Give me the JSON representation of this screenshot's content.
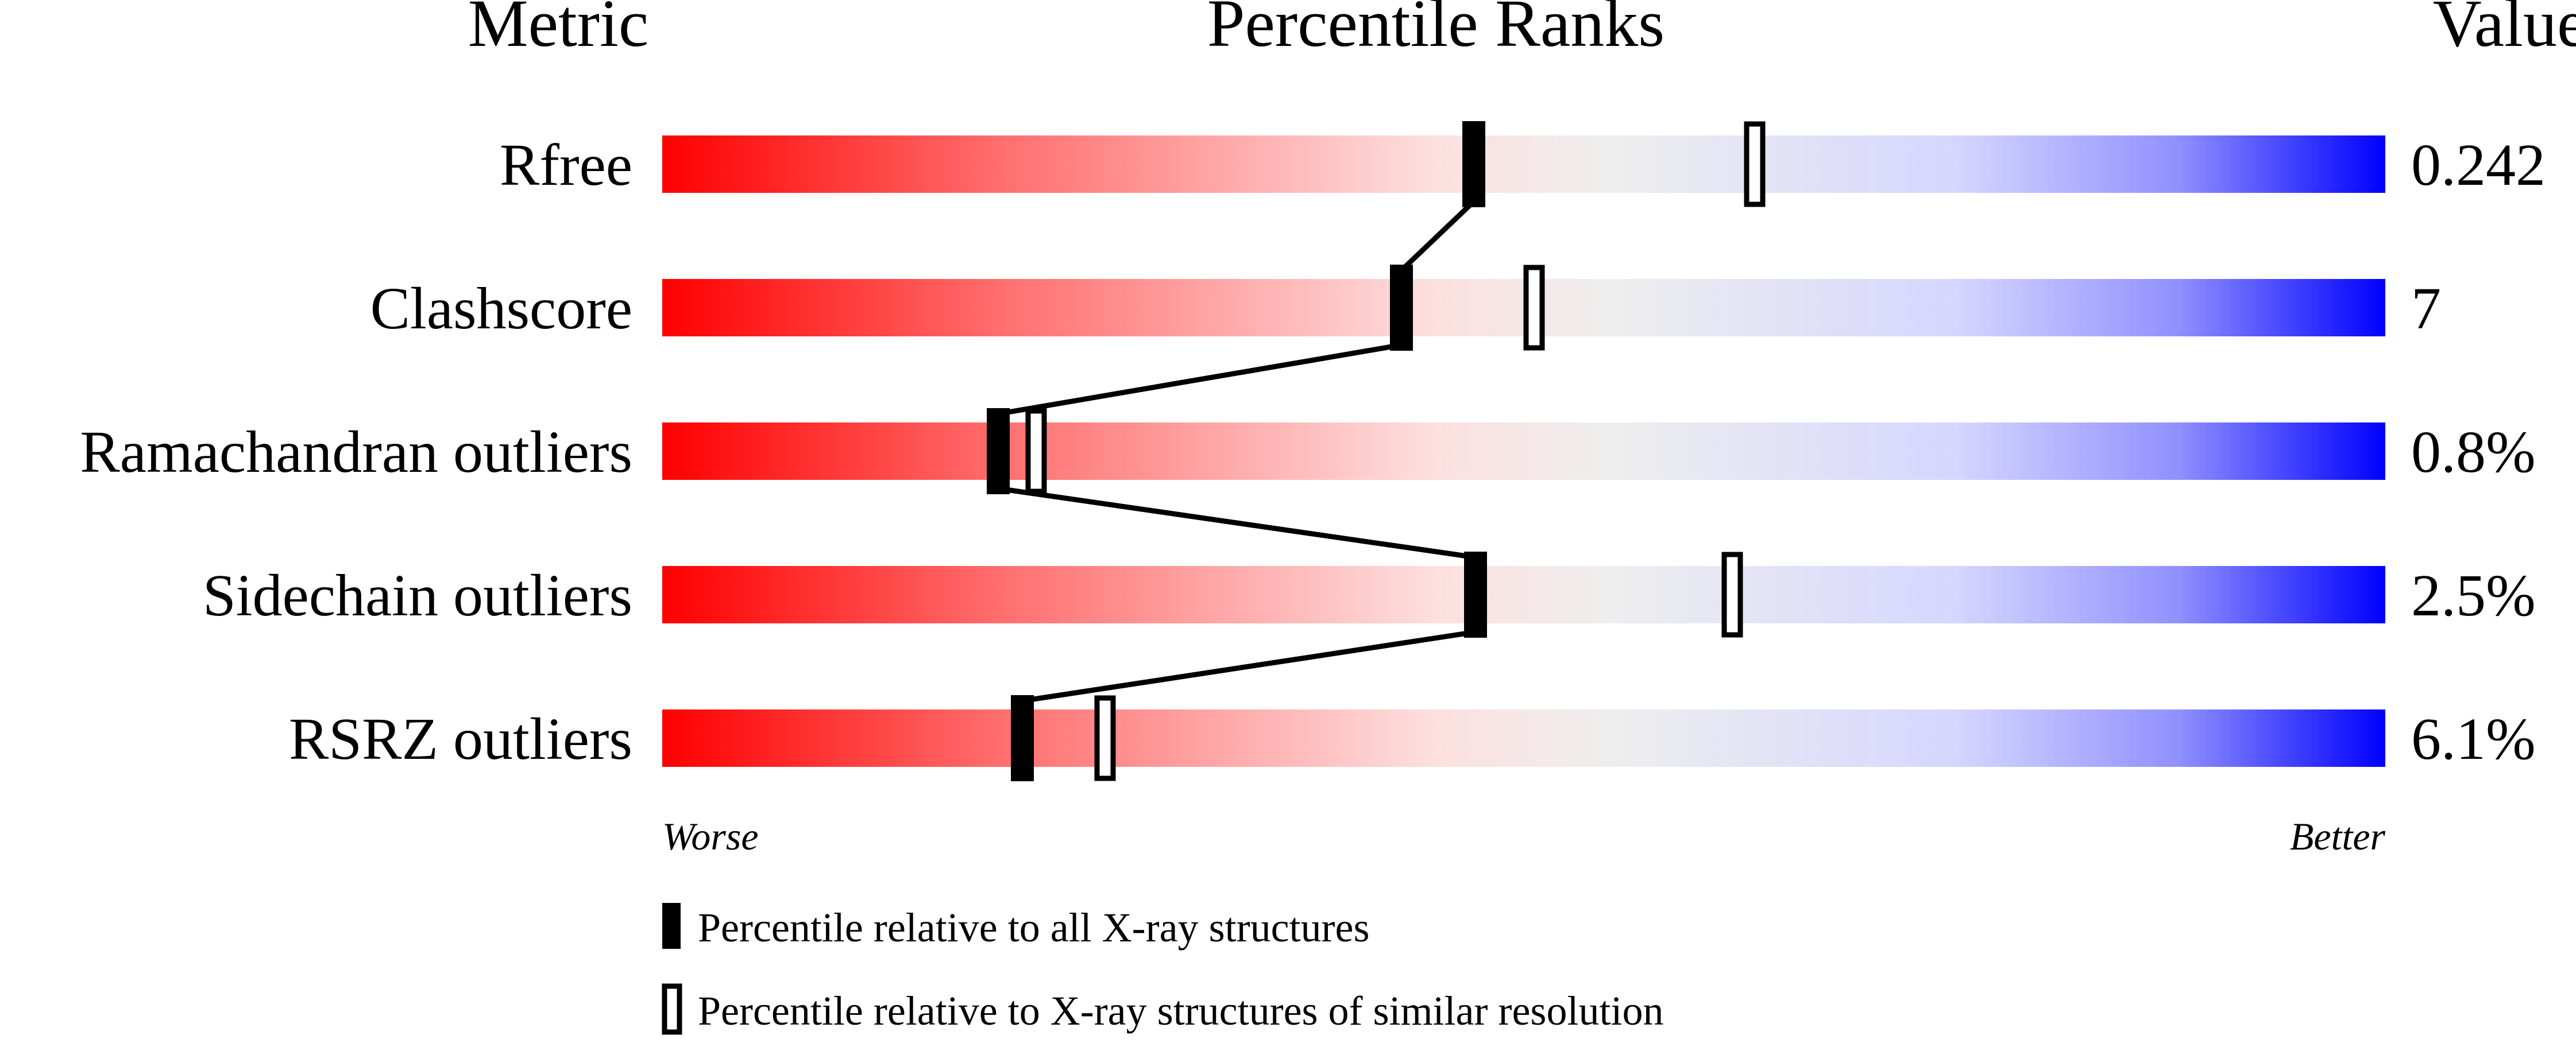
{
  "chart_data": {
    "type": "percentile-slider",
    "headers": {
      "metric": "Metric",
      "ranks": "Percentile Ranks",
      "value": "Value"
    },
    "xlim": [
      0,
      100
    ],
    "gradient_colors": {
      "worse": "#ff0000",
      "middle": "#eeeeee",
      "better": "#0000ff"
    },
    "metrics": [
      {
        "name": "Rfree",
        "value": "0.242",
        "percentile_all": 47.1,
        "percentile_similar": 63.4
      },
      {
        "name": "Clashscore",
        "value": "7",
        "percentile_all": 42.9,
        "percentile_similar": 50.6
      },
      {
        "name": "Ramachandran outliers",
        "value": "0.8%",
        "percentile_all": 19.5,
        "percentile_similar": 21.7
      },
      {
        "name": "Sidechain outliers",
        "value": "2.5%",
        "percentile_all": 47.2,
        "percentile_similar": 62.1
      },
      {
        "name": "RSRZ outliers",
        "value": "6.1%",
        "percentile_all": 20.9,
        "percentile_similar": 25.7
      }
    ],
    "axis_labels": {
      "left": "Worse",
      "right": "Better"
    },
    "legend": [
      {
        "marker": "filled",
        "label": "Percentile relative to all X-ray structures"
      },
      {
        "marker": "open",
        "label": "Percentile relative to X-ray structures of similar resolution"
      }
    ]
  }
}
